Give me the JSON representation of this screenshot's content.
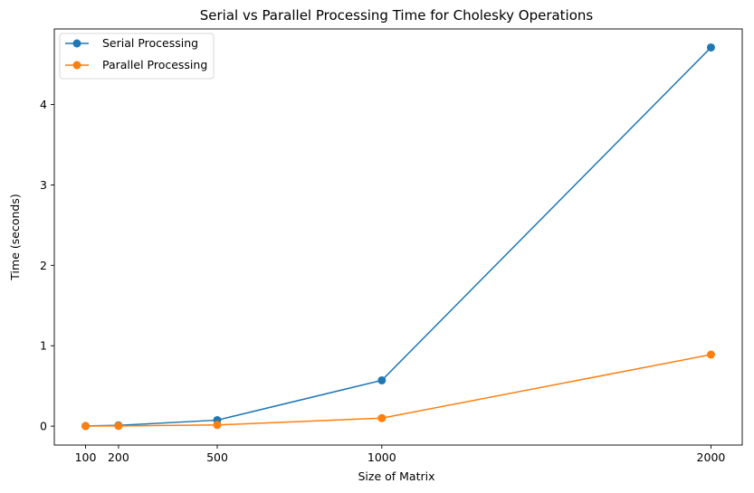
{
  "chart_data": {
    "type": "line",
    "title": "Serial vs Parallel Processing Time for Cholesky Operations",
    "xlabel": "Size of Matrix",
    "ylabel": "Time (seconds)",
    "x": [
      100,
      200,
      500,
      1000,
      2000
    ],
    "x_ticks": [
      100,
      200,
      500,
      1000,
      2000
    ],
    "y_ticks": [
      0,
      1,
      2,
      3,
      4
    ],
    "xlim": [
      5,
      2095
    ],
    "ylim": [
      -0.235,
      4.94
    ],
    "grid": false,
    "legend_position": "top-left",
    "series": [
      {
        "name": "Serial Processing",
        "color": "#1f77b4",
        "values": [
          0.002,
          0.01,
          0.075,
          0.57,
          4.71
        ]
      },
      {
        "name": "Parallel Processing",
        "color": "#ff7f0e",
        "values": [
          0.001,
          0.003,
          0.015,
          0.1,
          0.89
        ]
      }
    ]
  }
}
